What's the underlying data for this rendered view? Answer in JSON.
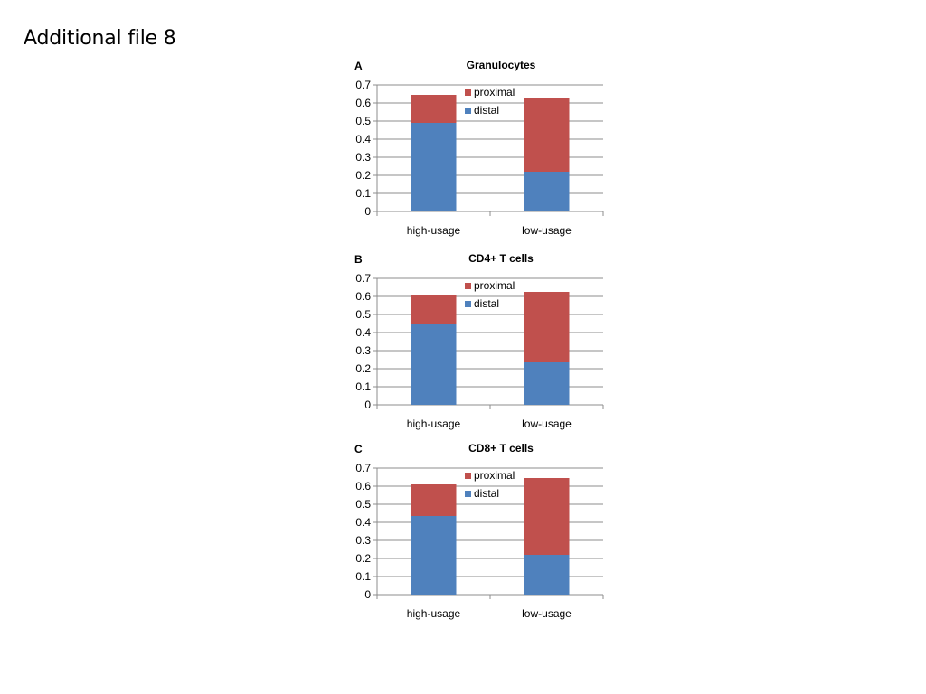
{
  "slide": {
    "title": "Additional file 8"
  },
  "chart_data": [
    {
      "type": "bar",
      "stacked": true,
      "panel_label": "A",
      "title": "Granulocytes",
      "categories": [
        "high-usage",
        "low-usage"
      ],
      "series": [
        {
          "name": "distal",
          "color": "#4F81BD",
          "values": [
            0.49,
            0.22
          ]
        },
        {
          "name": "proximal",
          "color": "#C0504D",
          "values": [
            0.155,
            0.41
          ]
        }
      ],
      "ylim": [
        0,
        0.7
      ],
      "yticks": [
        "0",
        "0.1",
        "0.2",
        "0.3",
        "0.4",
        "0.5",
        "0.6",
        "0.7"
      ],
      "grid": true,
      "legend": "top-right"
    },
    {
      "type": "bar",
      "stacked": true,
      "panel_label": "B",
      "title": "CD4+ T cells",
      "categories": [
        "high-usage",
        "low-usage"
      ],
      "series": [
        {
          "name": "distal",
          "color": "#4F81BD",
          "values": [
            0.45,
            0.235
          ]
        },
        {
          "name": "proximal",
          "color": "#C0504D",
          "values": [
            0.16,
            0.39
          ]
        }
      ],
      "ylim": [
        0,
        0.7
      ],
      "yticks": [
        "0",
        "0.1",
        "0.2",
        "0.3",
        "0.4",
        "0.5",
        "0.6",
        "0.7"
      ],
      "grid": true,
      "legend": "top-right"
    },
    {
      "type": "bar",
      "stacked": true,
      "panel_label": "C",
      "title": "CD8+ T cells",
      "categories": [
        "high-usage",
        "low-usage"
      ],
      "series": [
        {
          "name": "distal",
          "color": "#4F81BD",
          "values": [
            0.435,
            0.22
          ]
        },
        {
          "name": "proximal",
          "color": "#C0504D",
          "values": [
            0.175,
            0.425
          ]
        }
      ],
      "ylim": [
        0,
        0.7
      ],
      "yticks": [
        "0",
        "0.1",
        "0.2",
        "0.3",
        "0.4",
        "0.5",
        "0.6",
        "0.7"
      ],
      "grid": true,
      "legend": "top-right"
    }
  ]
}
